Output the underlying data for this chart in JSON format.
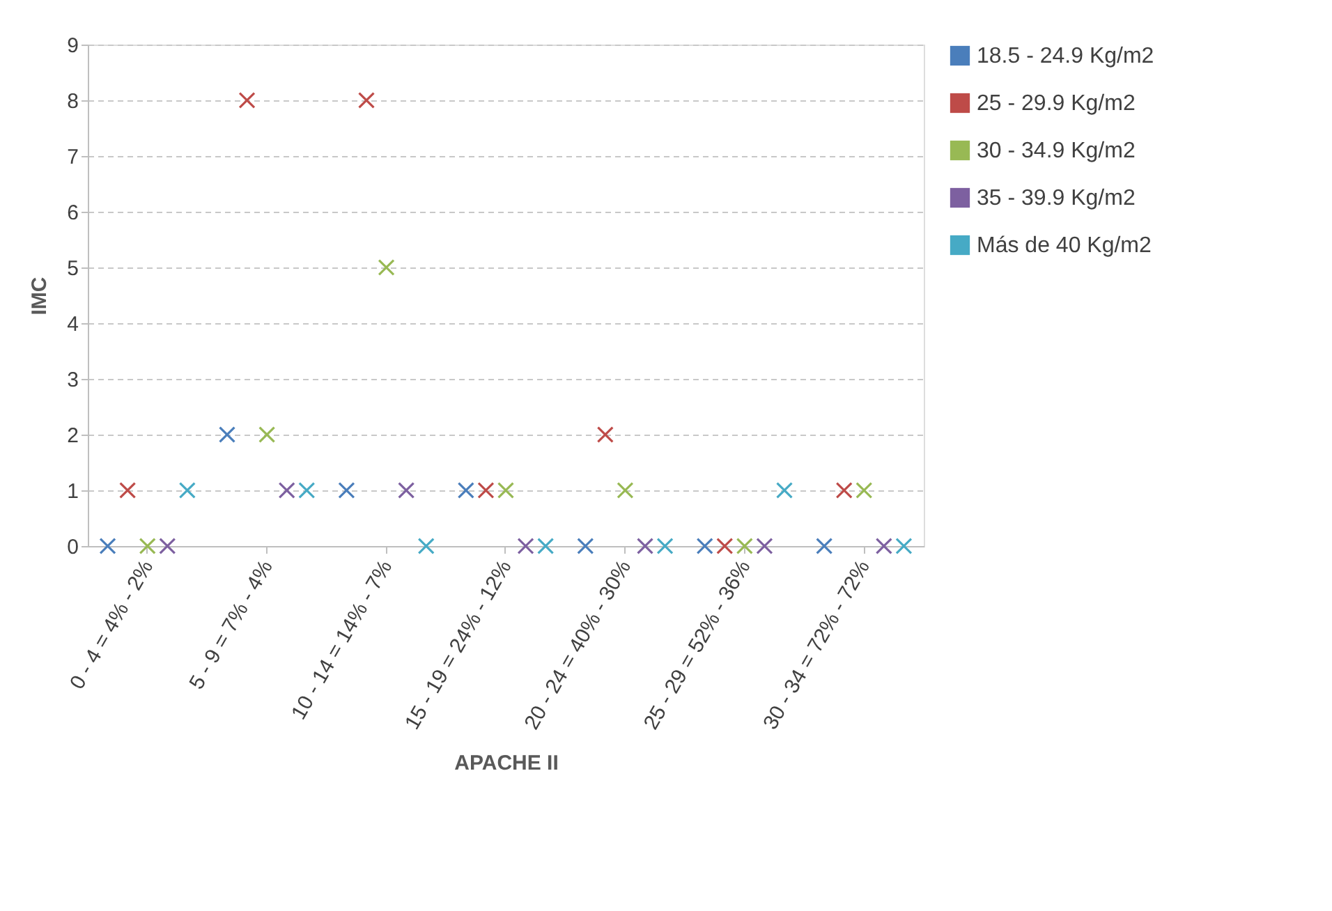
{
  "chart_data": {
    "type": "scatter",
    "xlabel": "APACHE II",
    "ylabel": "IMC",
    "categories": [
      "0 - 4 = 4% - 2%",
      "5 - 9 = 7% - 4%",
      "10 - 14 = 14% - 7%",
      "15 - 19 = 24% - 12%",
      "20 - 24 = 40% - 30%",
      "25 - 29 = 52% - 36%",
      "30 - 34 = 72% - 72%"
    ],
    "series": [
      {
        "name": "18.5 - 24.9 Kg/m2",
        "color": "#4a7ebb",
        "values": [
          0,
          2,
          1,
          1,
          0,
          0,
          0
        ]
      },
      {
        "name": "25 - 29.9 Kg/m2",
        "color": "#be4b48",
        "values": [
          1,
          8,
          8,
          1,
          2,
          0,
          1
        ]
      },
      {
        "name": "30 - 34.9 Kg/m2",
        "color": "#98b954",
        "values": [
          0,
          2,
          5,
          1,
          1,
          0,
          1
        ]
      },
      {
        "name": "35 - 39.9 Kg/m2",
        "color": "#7d60a0",
        "values": [
          0,
          1,
          1,
          0,
          0,
          0,
          0
        ]
      },
      {
        "name": "Más de 40 Kg/m2",
        "color": "#46aac5",
        "values": [
          1,
          1,
          0,
          0,
          0,
          1,
          0
        ]
      }
    ],
    "ylim": [
      0,
      9
    ],
    "yticks": [
      0,
      1,
      2,
      3,
      4,
      5,
      6,
      7,
      8,
      9
    ],
    "grid": "y",
    "legend": "right",
    "marker": "cross"
  }
}
